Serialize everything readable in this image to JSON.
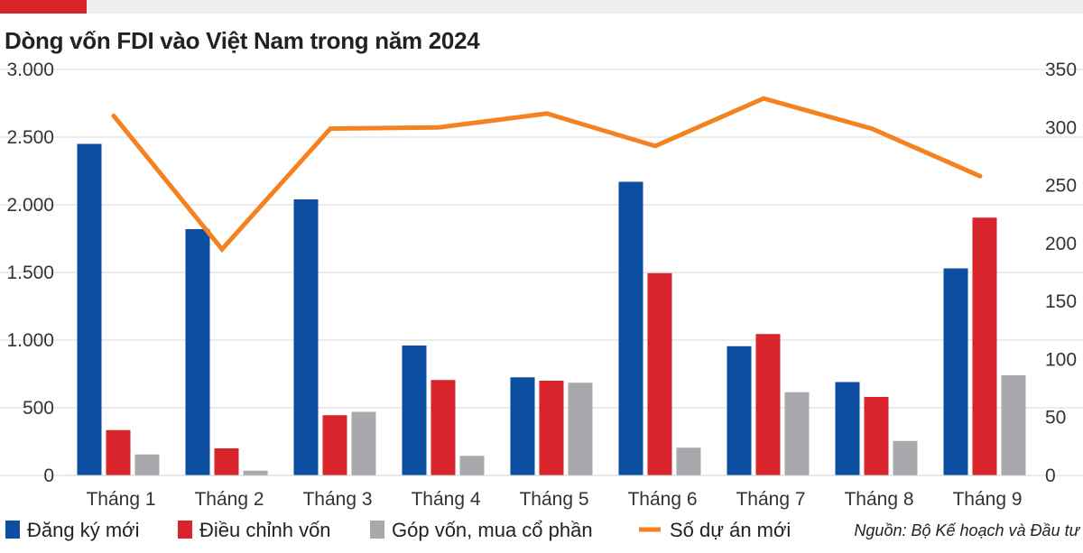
{
  "header": {
    "title": "Dòng vốn FDI vào Việt Nam trong năm 2024"
  },
  "colors": {
    "accent_bar": "#d9242b",
    "dang_ky_moi": "#0b4ea2",
    "dieu_chinh_von": "#d9242b",
    "gop_von": "#a7a9ac",
    "so_du_an": "#f58220"
  },
  "source": "Nguồn: Bộ Kế hoạch và Đầu tư",
  "chart_data": {
    "type": "bar",
    "categories": [
      "Tháng 1",
      "Tháng 2",
      "Tháng 3",
      "Tháng 4",
      "Tháng 5",
      "Tháng 6",
      "Tháng 7",
      "Tháng 8",
      "Tháng 9"
    ],
    "series": [
      {
        "name": "Đăng ký mới",
        "type": "bar",
        "axis": "left",
        "color": "#0b4ea2",
        "values": [
          2450,
          1820,
          2040,
          960,
          725,
          2170,
          955,
          690,
          1530
        ]
      },
      {
        "name": "Điều chỉnh vốn",
        "type": "bar",
        "axis": "left",
        "color": "#d9242b",
        "values": [
          335,
          200,
          445,
          705,
          700,
          1495,
          1045,
          580,
          1905
        ]
      },
      {
        "name": "Góp vốn, mua cổ phần",
        "type": "bar",
        "axis": "left",
        "color": "#a7a9ac",
        "values": [
          155,
          35,
          470,
          145,
          685,
          205,
          615,
          255,
          740
        ]
      },
      {
        "name": "Số dự án mới",
        "type": "line",
        "axis": "right",
        "color": "#f58220",
        "values": [
          310,
          195,
          299,
          300,
          312,
          284,
          325,
          299,
          258
        ]
      }
    ],
    "y_left": {
      "ylim": [
        0,
        3000
      ],
      "ticks": [
        "0",
        "500",
        "1.000",
        "1.500",
        "2.000",
        "2.500",
        "3.000"
      ],
      "tick_values": [
        0,
        500,
        1000,
        1500,
        2000,
        2500,
        3000
      ]
    },
    "y_right": {
      "ylim": [
        0,
        350
      ],
      "ticks": [
        "0",
        "50",
        "100",
        "150",
        "200",
        "250",
        "300",
        "350"
      ],
      "tick_values": [
        0,
        50,
        100,
        150,
        200,
        250,
        300,
        350
      ]
    },
    "grid": true,
    "legend_placement": "bottom"
  }
}
